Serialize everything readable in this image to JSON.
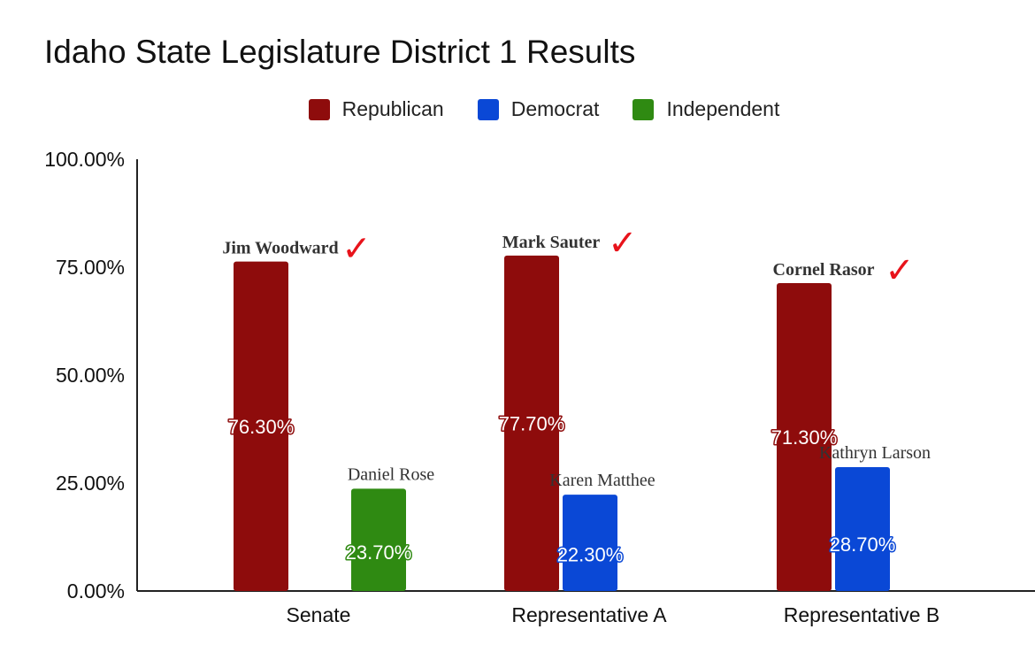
{
  "chart_data": {
    "type": "bar",
    "title": "Idaho State Legislature District 1 Results",
    "xlabel": "",
    "ylabel": "",
    "ylim": [
      0,
      100
    ],
    "yticks": [
      "0.00%",
      "25.00%",
      "50.00%",
      "75.00%",
      "100.00%"
    ],
    "ytick_values": [
      0,
      25,
      50,
      75,
      100
    ],
    "grid": false,
    "legend_position": "top-center",
    "legend": [
      {
        "name": "Republican",
        "color": "#8e0c0c"
      },
      {
        "name": "Democrat",
        "color": "#0a48d6"
      },
      {
        "name": "Independent",
        "color": "#2f8a12"
      }
    ],
    "categories": [
      "Senate",
      "Representative A",
      "Representative B"
    ],
    "bars": [
      {
        "category": 0,
        "party": "Republican",
        "value": 76.3,
        "label": "76.30%",
        "candidate": "Jim Woodward",
        "winner": true
      },
      {
        "category": 0,
        "party": "Independent",
        "value": 23.7,
        "label": "23.70%",
        "candidate": "Daniel Rose",
        "winner": false
      },
      {
        "category": 1,
        "party": "Republican",
        "value": 77.7,
        "label": "77.70%",
        "candidate": "Mark Sauter",
        "winner": true
      },
      {
        "category": 1,
        "party": "Democrat",
        "value": 22.3,
        "label": "22.30%",
        "candidate": "Karen Matthee",
        "winner": false
      },
      {
        "category": 2,
        "party": "Republican",
        "value": 71.3,
        "label": "71.30%",
        "candidate": "Cornel Rasor",
        "winner": true
      },
      {
        "category": 2,
        "party": "Democrat",
        "value": 28.7,
        "label": "28.70%",
        "candidate": "Kathryn Larson",
        "winner": false
      }
    ],
    "winner_mark": "✓"
  }
}
